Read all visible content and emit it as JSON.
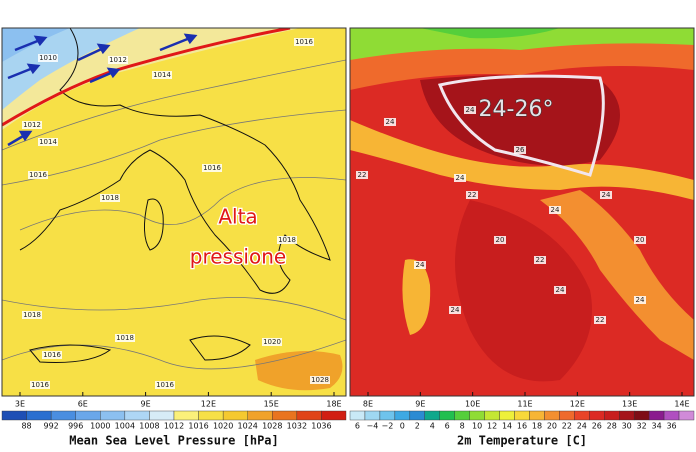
{
  "panels": [
    {
      "title": "Mean Sea Level Pressure [hPa]",
      "annotation": [
        "Alta",
        "pressione"
      ],
      "longitudes": [
        "3E",
        "6E",
        "9E",
        "12E",
        "15E",
        "18E"
      ],
      "colorbar_labels": [
        "88",
        "992",
        "996",
        "1000",
        "1004",
        "1008",
        "1012",
        "1016",
        "1020",
        "1024",
        "1028",
        "1032",
        "1036"
      ],
      "colorbar_colors": [
        "#1e4fb5",
        "#2a6fd0",
        "#4a8ee0",
        "#6aa7ea",
        "#8cc0f0",
        "#aed6f5",
        "#d7ecf7",
        "#fbf07a",
        "#f7e046",
        "#f5c92f",
        "#f0a22a",
        "#e9741f",
        "#e04418",
        "#d11e12"
      ],
      "contour_labels": [
        "1010",
        "1012",
        "1014",
        "1016",
        "1012",
        "1014",
        "1016",
        "1018",
        "1016",
        "1018",
        "1020",
        "1028",
        "1016",
        "1016",
        "1016",
        "1018",
        "1018"
      ]
    },
    {
      "title": "2m Temperature [C]",
      "annotation": [
        "24-26°"
      ],
      "longitudes": [
        "8E",
        "9E",
        "10E",
        "11E",
        "12E",
        "13E",
        "14E"
      ],
      "colorbar_labels": [
        "6",
        "−4",
        "−2",
        "0",
        "2",
        "4",
        "6",
        "8",
        "10",
        "12",
        "14",
        "16",
        "18",
        "20",
        "22",
        "24",
        "26",
        "28",
        "30",
        "32",
        "34",
        "36"
      ],
      "colorbar_colors": [
        "#c9e9f7",
        "#9fd8f2",
        "#6ec3ec",
        "#3ea9e3",
        "#2b8bd3",
        "#0fa88c",
        "#21bf4f",
        "#55cf3b",
        "#8fdc35",
        "#c4e733",
        "#eef03a",
        "#f8d83a",
        "#f7b535",
        "#f38f30",
        "#ef6a2c",
        "#e94428",
        "#dc2a24",
        "#c81e1e",
        "#a5141a",
        "#7e0d15",
        "#8a1b8e",
        "#b04fc0",
        "#d08ad8"
      ],
      "contour_labels": [
        "24",
        "22",
        "24",
        "22",
        "24",
        "24",
        "22",
        "24",
        "20",
        "24",
        "22",
        "24",
        "26",
        "24",
        "20",
        "24"
      ]
    }
  ]
}
